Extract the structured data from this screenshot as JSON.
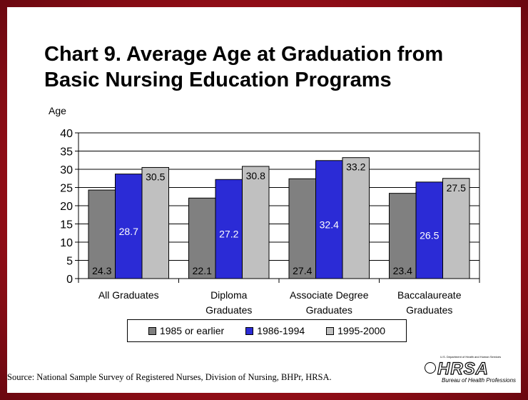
{
  "title": "Chart 9. Average Age at Graduation from Basic Nursing Education Programs",
  "source": "Source: National Sample Survey of Registered Nurses, Division of Nursing, BHPr, HRSA.",
  "logo": {
    "main": "HRSA",
    "small_text": "U.S. Department of Health and Human Services",
    "sub_text": "Bureau of Health Professions"
  },
  "chart_data": {
    "type": "bar",
    "title": "Chart 9. Average Age at Graduation from Basic Nursing Education Programs",
    "ylabel": "Age",
    "xlabel": "",
    "ylim": [
      0,
      40
    ],
    "yticks": [
      0,
      5,
      10,
      15,
      20,
      25,
      30,
      35,
      40
    ],
    "grid": true,
    "legend": "bottom",
    "categories": [
      "All Graduates",
      "Diploma Graduates",
      "Associate Degree Graduates",
      "Baccalaureate Graduates"
    ],
    "category_lines": [
      [
        "All Graduates"
      ],
      [
        "Diploma",
        "Graduates"
      ],
      [
        "Associate Degree",
        "Graduates"
      ],
      [
        "Baccalaureate",
        "Graduates"
      ]
    ],
    "series": [
      {
        "name": "1985 or earlier",
        "color": "#808080",
        "label_color": "#000000",
        "values": [
          24.3,
          22.1,
          27.4,
          23.4
        ]
      },
      {
        "name": "1986-1994",
        "color": "#2b2bd6",
        "label_color": "#ffffff",
        "values": [
          28.7,
          27.2,
          32.4,
          26.5
        ]
      },
      {
        "name": "1995-2000",
        "color": "#c0c0c0",
        "label_color": "#000000",
        "values": [
          30.5,
          30.8,
          33.2,
          27.5
        ]
      }
    ]
  }
}
